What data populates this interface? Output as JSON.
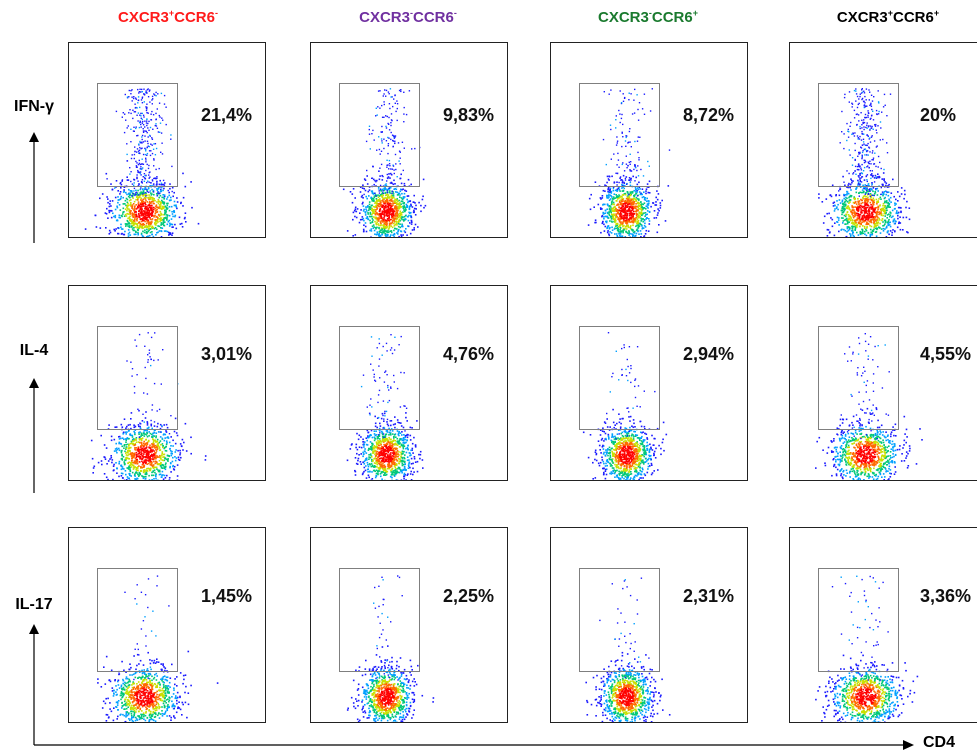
{
  "chart_data": {
    "type": "scatter",
    "columns": [
      {
        "label_parts": [
          "CXCR3",
          "+",
          "CCR6",
          "-"
        ],
        "color": "#ff1a1a"
      },
      {
        "label_parts": [
          "CXCR3",
          "-",
          "CCR6",
          "-"
        ],
        "color": "#7030a0"
      },
      {
        "label_parts": [
          "CXCR3",
          "-",
          "CCR6",
          "+"
        ],
        "color": "#1a7a2e"
      },
      {
        "label_parts": [
          "CXCR3",
          "+",
          "CCR6",
          "+"
        ],
        "color": "#000000"
      }
    ],
    "rows": [
      {
        "label": "IFN-γ",
        "percents": [
          "21,4%",
          "9,83%",
          "8,72%",
          "20%"
        ],
        "gate_fraction": [
          0.37,
          0.18,
          0.14,
          0.35
        ]
      },
      {
        "label": "IL-4",
        "percents": [
          "3,01%",
          "4,76%",
          "2,94%",
          "4,55%"
        ],
        "gate_fraction": [
          0.06,
          0.08,
          0.05,
          0.08
        ]
      },
      {
        "label": "IL-17",
        "percents": [
          "1,45%",
          "2,25%",
          "2,31%",
          "3,36%"
        ],
        "gate_fraction": [
          0.03,
          0.04,
          0.04,
          0.06
        ]
      }
    ],
    "percent_suffix": "%",
    "x_axis_label": "CD4",
    "colorscale": [
      "#1a1aff",
      "#00a0ff",
      "#00c878",
      "#c8e000",
      "#ff6a00",
      "#ff0000"
    ]
  }
}
